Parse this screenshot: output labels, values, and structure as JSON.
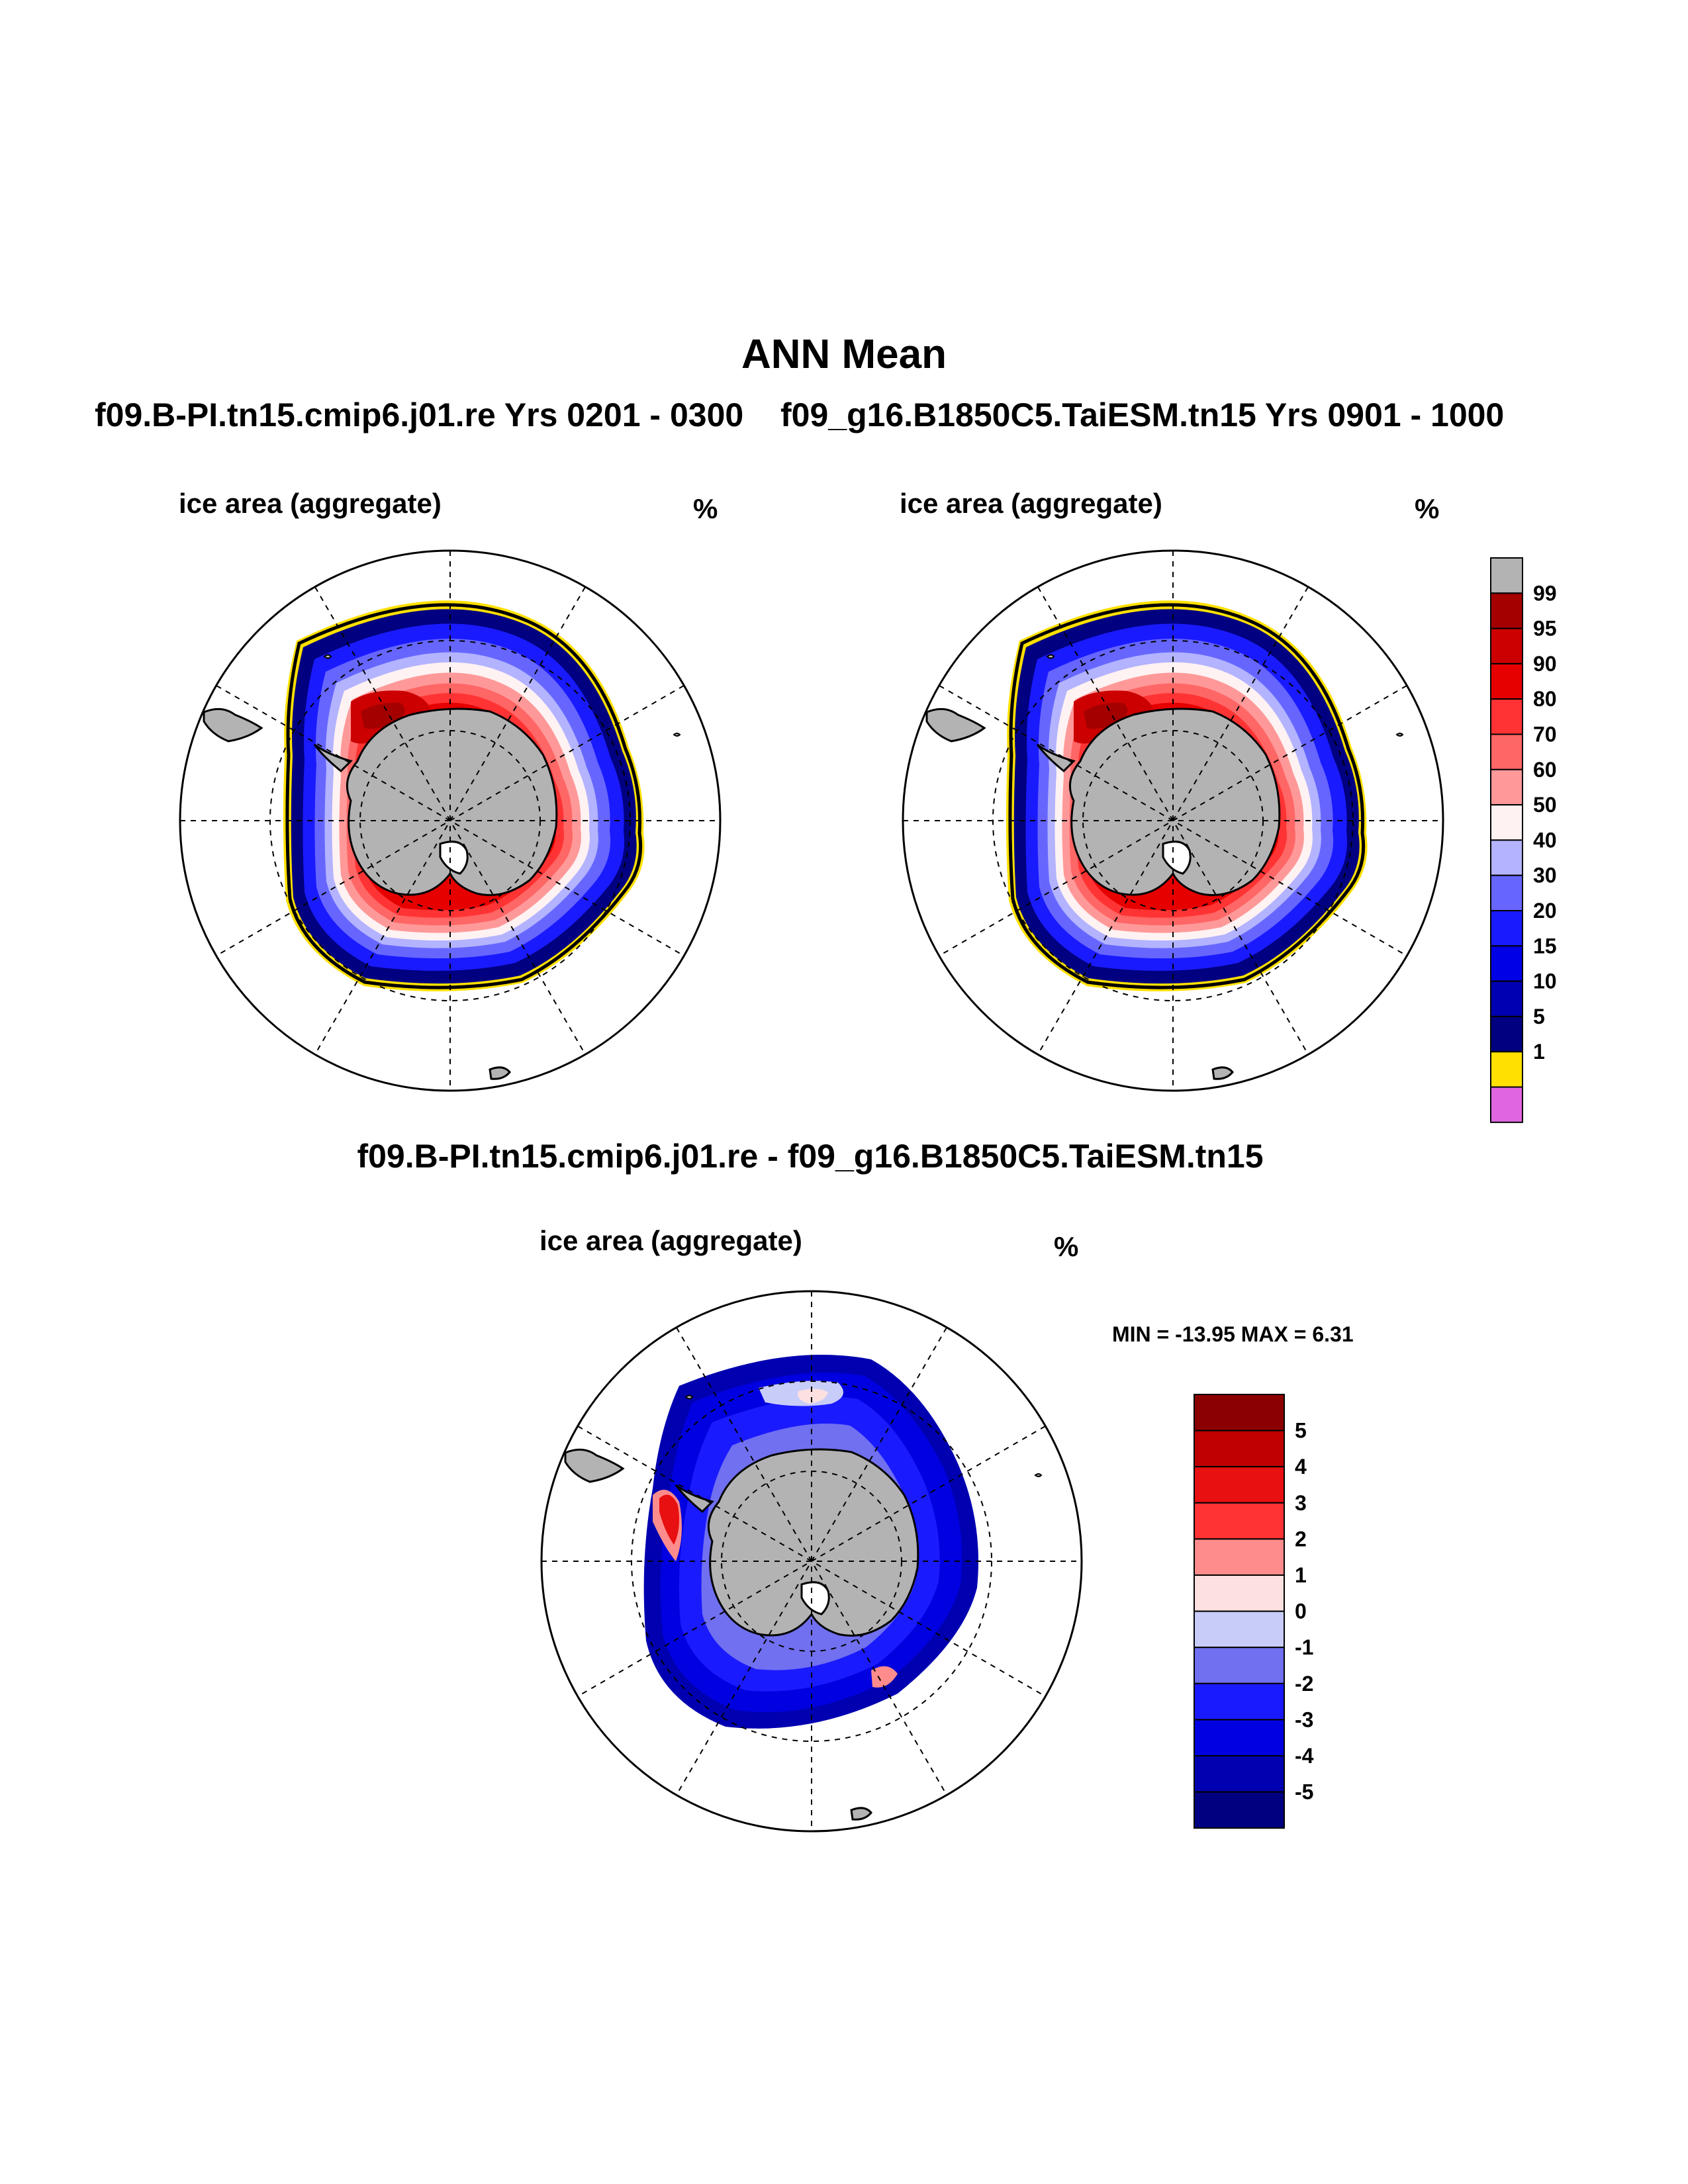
{
  "figure": {
    "title": "ANN Mean",
    "run_a": "f09.B-PI.tn15.cmip6.j01.re  Yrs 0201 - 0300",
    "run_b": "f09_g16.B1850C5.TaiESM.tn15  Yrs 0901 - 1000",
    "diff_title": "f09.B-PI.tn15.cmip6.j01.re - f09_g16.B1850C5.TaiESM.tn15"
  },
  "panels": {
    "a": {
      "variable": "ice area  (aggregate)",
      "units": "%"
    },
    "b": {
      "variable": "ice area  (aggregate)",
      "units": "%"
    },
    "diff": {
      "variable": "ice area  (aggregate)",
      "units": "%",
      "minmax": "MIN = -13.95 MAX =   6.31"
    }
  },
  "main_colorbar": {
    "labels": [
      "99",
      "95",
      "90",
      "80",
      "70",
      "60",
      "50",
      "40",
      "30",
      "20",
      "15",
      "10",
      "5",
      "1"
    ],
    "colors": [
      "#b3b3b3",
      "#a50000",
      "#cc0000",
      "#e60000",
      "#ff3333",
      "#ff6666",
      "#ff9999",
      "#fff2f2",
      "#b3b3ff",
      "#6666ff",
      "#1a1aff",
      "#0000e6",
      "#0000b3",
      "#000080",
      "#ffe000",
      "#e066e0"
    ]
  },
  "diff_colorbar": {
    "labels": [
      "5",
      "4",
      "3",
      "2",
      "1",
      "0",
      "-1",
      "-2",
      "-3",
      "-4",
      "-5"
    ],
    "colors": [
      "#8b0000",
      "#c00000",
      "#e81010",
      "#ff3333",
      "#ff8c8c",
      "#fde0e0",
      "#c8ccf8",
      "#7070f0",
      "#1a1aff",
      "#0000e0",
      "#0000b0",
      "#000080"
    ]
  },
  "legend_icons": {
    "continent": "antarctica-landmass",
    "other_land": "south-america-landmass"
  }
}
